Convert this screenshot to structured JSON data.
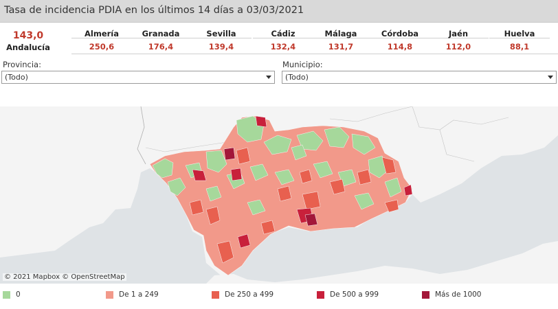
{
  "header": {
    "title": "Tasa de incidencia PDIA en los últimos 14 días a 03/03/2021"
  },
  "summary": {
    "total_value": "143,0",
    "total_label": "Andalucía"
  },
  "provinces": [
    {
      "name": "Almería",
      "value": "250,6"
    },
    {
      "name": "Granada",
      "value": "176,4"
    },
    {
      "name": "Sevilla",
      "value": "139,4"
    },
    {
      "name": "Cádiz",
      "value": "132,4"
    },
    {
      "name": "Málaga",
      "value": "131,7"
    },
    {
      "name": "Córdoba",
      "value": "114,8"
    },
    {
      "name": "Jaén",
      "value": "112,0"
    },
    {
      "name": "Huelva",
      "value": "88,1"
    }
  ],
  "filters": {
    "provincia": {
      "label": "Provincia:",
      "value": "(Todo)"
    },
    "municipio": {
      "label": "Municipio:",
      "value": "(Todo)"
    }
  },
  "map": {
    "attribution": "© 2021 Mapbox © OpenStreetMap"
  },
  "legend": [
    {
      "label": "0",
      "color": "#a6d89b"
    },
    {
      "label": "De 1 a 249",
      "color": "#f2998a"
    },
    {
      "label": "De 250 a 499",
      "color": "#e8604f"
    },
    {
      "label": "De 500 a 999",
      "color": "#c8203b"
    },
    {
      "label": "Más de 1000",
      "color": "#a31739"
    }
  ],
  "colors": {
    "accent_value": "#c0392b",
    "zero": "#a6d89b",
    "low": "#f2998a",
    "medium": "#e8604f",
    "high": "#c8203b",
    "very_high": "#a31739",
    "land": "#f4f4f4",
    "sea": "#dfe3e6"
  }
}
